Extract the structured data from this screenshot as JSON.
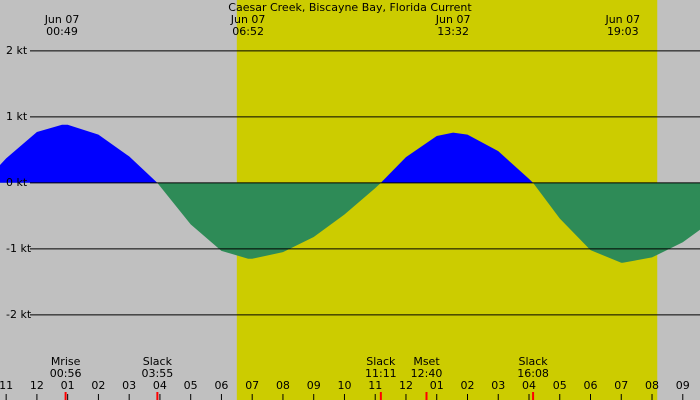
{
  "chart_data": {
    "type": "area",
    "title": "Caesar Creek, Biscayne Bay, Florida Current",
    "x": [
      -1.2,
      -1,
      0,
      0.817,
      1,
      2,
      3,
      3.917,
      4,
      5,
      6,
      6.867,
      7,
      8,
      9,
      10,
      11,
      11.183,
      12,
      13,
      13.533,
      14,
      15,
      16,
      16.133,
      17,
      18,
      19,
      19.05,
      20,
      21,
      21.56
    ],
    "values": [
      0.27,
      0.37,
      0.77,
      0.88,
      0.88,
      0.73,
      0.4,
      0,
      -0.05,
      -0.63,
      -1.03,
      -1.15,
      -1.15,
      -1.05,
      -0.82,
      -0.48,
      -0.08,
      0,
      0.39,
      0.71,
      0.76,
      0.73,
      0.48,
      0.06,
      0,
      -0.54,
      -1.02,
      -1.21,
      -1.21,
      -1.13,
      -0.9,
      -0.71
    ],
    "flood_color": "#0000ff",
    "ebb_color": "#2e8b57",
    "background_color": "#c0c0c0",
    "daylight_color": "#cccc00",
    "daylight": [
      6.5,
      20.17
    ],
    "xlim": [
      -1.2,
      21.56
    ],
    "ylim": [
      -3.29,
      2.77
    ],
    "grid": true,
    "yticks": [
      {
        "value": 2,
        "label": "2 kt"
      },
      {
        "value": 1,
        "label": "1 kt"
      },
      {
        "value": 0,
        "label": "0 kt"
      },
      {
        "value": -1,
        "label": "-1 kt"
      },
      {
        "value": -2,
        "label": "-2 kt"
      }
    ],
    "xticks": [
      {
        "value": -1,
        "label": "11"
      },
      {
        "value": 0,
        "label": "12"
      },
      {
        "value": 1,
        "label": "01"
      },
      {
        "value": 2,
        "label": "02"
      },
      {
        "value": 3,
        "label": "03"
      },
      {
        "value": 4,
        "label": "04"
      },
      {
        "value": 5,
        "label": "05"
      },
      {
        "value": 6,
        "label": "06"
      },
      {
        "value": 7,
        "label": "07"
      },
      {
        "value": 8,
        "label": "08"
      },
      {
        "value": 9,
        "label": "09"
      },
      {
        "value": 10,
        "label": "10"
      },
      {
        "value": 11,
        "label": "11"
      },
      {
        "value": 12,
        "label": "12"
      },
      {
        "value": 13,
        "label": "01"
      },
      {
        "value": 14,
        "label": "02"
      },
      {
        "value": 15,
        "label": "03"
      },
      {
        "value": 16,
        "label": "04"
      },
      {
        "value": 17,
        "label": "05"
      },
      {
        "value": 18,
        "label": "06"
      },
      {
        "value": 19,
        "label": "07"
      },
      {
        "value": 20,
        "label": "08"
      },
      {
        "value": 21,
        "label": "09"
      }
    ],
    "peaks": [
      {
        "date": "Jun 07",
        "time": "00:49",
        "hour": 0.817
      },
      {
        "date": "Jun 07",
        "time": "06:52",
        "hour": 6.867
      },
      {
        "date": "Jun 07",
        "time": "13:32",
        "hour": 13.533
      },
      {
        "date": "Jun 07",
        "time": "19:03",
        "hour": 19.05
      }
    ],
    "events": [
      {
        "label": "Mrise",
        "time": "00:56",
        "hour": 0.933
      },
      {
        "label": "Slack",
        "time": "03:55",
        "hour": 3.917
      },
      {
        "label": "Slack",
        "time": "11:11",
        "hour": 11.183
      },
      {
        "label": "Mset",
        "time": "12:40",
        "hour": 12.667
      },
      {
        "label": "Slack",
        "time": "16:08",
        "hour": 16.133
      }
    ]
  }
}
